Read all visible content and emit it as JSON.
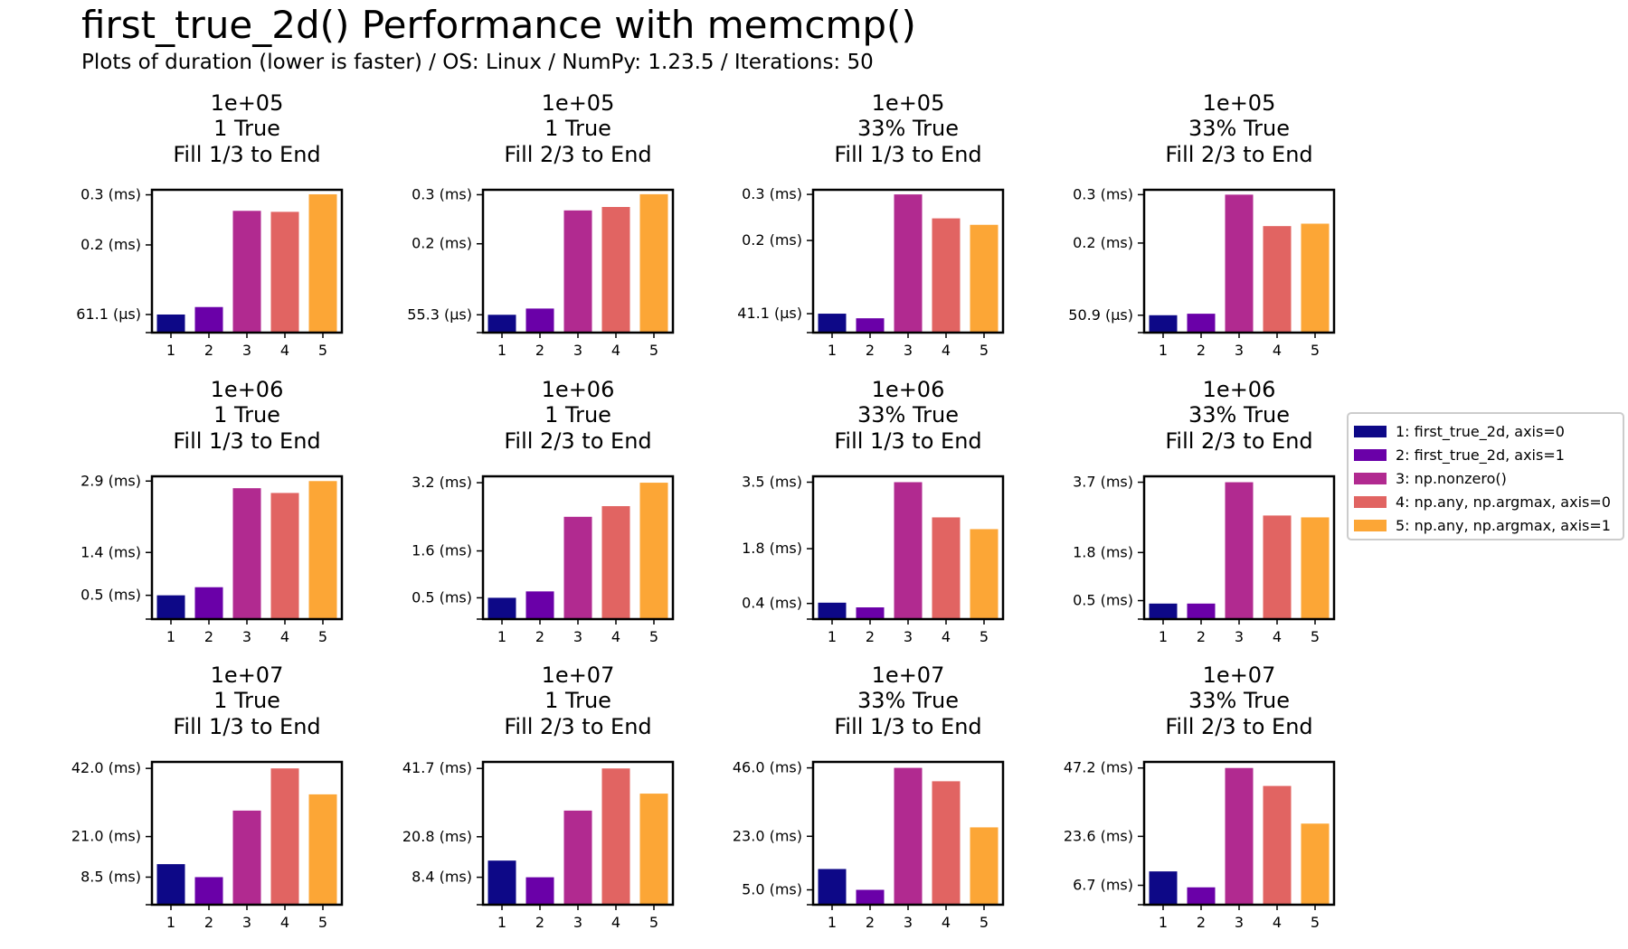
{
  "header": {
    "title": "first_true_2d() Performance with memcmp()",
    "subtitle": "Plots of duration (lower is faster) / OS: Linux / NumPy: 1.23.5 / Iterations: 50"
  },
  "legend": {
    "placement": "center-right",
    "entries": [
      {
        "label": "1: first_true_2d, axis=0",
        "color": "#0d0887"
      },
      {
        "label": "2: first_true_2d, axis=1",
        "color": "#6a00a8"
      },
      {
        "label": "3: np.nonzero()",
        "color": "#b12a90"
      },
      {
        "label": "4: np.any, np.argmax, axis=0",
        "color": "#e16462"
      },
      {
        "label": "5: np.any, np.argmax, axis=1",
        "color": "#fca636"
      }
    ]
  },
  "chart_data": [
    {
      "type": "bar",
      "title": [
        "1e+05",
        "1 True",
        "Fill 1/3 to End"
      ],
      "categories": [
        "1",
        "2",
        "3",
        "4",
        "5"
      ],
      "values": [
        0.0611,
        0.076,
        0.268,
        0.266,
        0.301
      ],
      "ylim": [
        0.025,
        0.31
      ],
      "yticks": [
        0.0611,
        0.2,
        0.3
      ],
      "ytick_labels": [
        "61.1 (µs)",
        "0.2 (ms)",
        "0.3 (ms)"
      ]
    },
    {
      "type": "bar",
      "title": [
        "1e+05",
        "1 True",
        "Fill 2/3 to End"
      ],
      "categories": [
        "1",
        "2",
        "3",
        "4",
        "5"
      ],
      "values": [
        0.0553,
        0.068,
        0.268,
        0.275,
        0.301
      ],
      "ylim": [
        0.019,
        0.31
      ],
      "yticks": [
        0.0553,
        0.2,
        0.3
      ],
      "ytick_labels": [
        "55.3 (µs)",
        "0.2 (ms)",
        "0.3 (ms)"
      ]
    },
    {
      "type": "bar",
      "title": [
        "1e+05",
        "33% True",
        "Fill 1/3 to End"
      ],
      "categories": [
        "1",
        "2",
        "3",
        "4",
        "5"
      ],
      "values": [
        0.0411,
        0.0311,
        0.3,
        0.248,
        0.234
      ],
      "ylim": [
        0.0,
        0.31
      ],
      "yticks": [
        0.0411,
        0.2,
        0.3
      ],
      "ytick_labels": [
        "41.1 (µs)",
        "0.2 (ms)",
        "0.3 (ms)"
      ]
    },
    {
      "type": "bar",
      "title": [
        "1e+05",
        "33% True",
        "Fill 2/3 to End"
      ],
      "categories": [
        "1",
        "2",
        "3",
        "4",
        "5"
      ],
      "values": [
        0.0509,
        0.054,
        0.3,
        0.235,
        0.24
      ],
      "ylim": [
        0.015,
        0.31
      ],
      "yticks": [
        0.0509,
        0.2,
        0.3
      ],
      "ytick_labels": [
        "50.9 (µs)",
        "0.2 (ms)",
        "0.3 (ms)"
      ]
    },
    {
      "type": "bar",
      "title": [
        "1e+06",
        "1 True",
        "Fill 1/3 to End"
      ],
      "categories": [
        "1",
        "2",
        "3",
        "4",
        "5"
      ],
      "values": [
        0.5,
        0.67,
        2.75,
        2.65,
        2.9
      ],
      "ylim": [
        0.0,
        3.0
      ],
      "yticks": [
        0.5,
        1.4,
        2.9
      ],
      "ytick_labels": [
        "0.5 (ms)",
        "1.4 (ms)",
        "2.9 (ms)"
      ]
    },
    {
      "type": "bar",
      "title": [
        "1e+06",
        "1 True",
        "Fill 2/3 to End"
      ],
      "categories": [
        "1",
        "2",
        "3",
        "4",
        "5"
      ],
      "values": [
        0.5,
        0.65,
        2.4,
        2.65,
        3.2
      ],
      "ylim": [
        0.0,
        3.35
      ],
      "yticks": [
        0.5,
        1.6,
        3.2
      ],
      "ytick_labels": [
        "0.5 (ms)",
        "1.6 (ms)",
        "3.2 (ms)"
      ]
    },
    {
      "type": "bar",
      "title": [
        "1e+06",
        "33% True",
        "Fill 1/3 to End"
      ],
      "categories": [
        "1",
        "2",
        "3",
        "4",
        "5"
      ],
      "values": [
        0.42,
        0.3,
        3.5,
        2.6,
        2.3
      ],
      "ylim": [
        0.0,
        3.65
      ],
      "yticks": [
        0.4,
        1.8,
        3.5
      ],
      "ytick_labels": [
        "0.4 (ms)",
        "1.8 (ms)",
        "3.5 (ms)"
      ]
    },
    {
      "type": "bar",
      "title": [
        "1e+06",
        "33% True",
        "Fill 2/3 to End"
      ],
      "categories": [
        "1",
        "2",
        "3",
        "4",
        "5"
      ],
      "values": [
        0.42,
        0.42,
        3.7,
        2.8,
        2.75
      ],
      "ylim": [
        0.0,
        3.86
      ],
      "yticks": [
        0.5,
        1.8,
        3.7
      ],
      "ytick_labels": [
        "0.5 (ms)",
        "1.8 (ms)",
        "3.7 (ms)"
      ]
    },
    {
      "type": "bar",
      "title": [
        "1e+07",
        "1 True",
        "Fill 1/3 to End"
      ],
      "categories": [
        "1",
        "2",
        "3",
        "4",
        "5"
      ],
      "values": [
        12.5,
        8.5,
        29.0,
        42.0,
        34.0
      ],
      "ylim": [
        0.0,
        44.0
      ],
      "yticks": [
        8.5,
        21.0,
        42.0
      ],
      "ytick_labels": [
        "8.5 (ms)",
        "21.0 (ms)",
        "42.0 (ms)"
      ]
    },
    {
      "type": "bar",
      "title": [
        "1e+07",
        "1 True",
        "Fill 2/3 to End"
      ],
      "categories": [
        "1",
        "2",
        "3",
        "4",
        "5"
      ],
      "values": [
        13.5,
        8.4,
        28.8,
        41.7,
        34.0
      ],
      "ylim": [
        0.0,
        43.7
      ],
      "yticks": [
        8.4,
        20.8,
        41.7
      ],
      "ytick_labels": [
        "8.4 (ms)",
        "20.8 (ms)",
        "41.7 (ms)"
      ]
    },
    {
      "type": "bar",
      "title": [
        "1e+07",
        "33% True",
        "Fill 1/3 to End"
      ],
      "categories": [
        "1",
        "2",
        "3",
        "4",
        "5"
      ],
      "values": [
        12.0,
        5.0,
        46.0,
        41.5,
        26.0
      ],
      "ylim": [
        0.0,
        48.0
      ],
      "yticks": [
        5.0,
        23.0,
        46.0
      ],
      "ytick_labels": [
        "5.0 (ms)",
        "23.0 (ms)",
        "46.0 (ms)"
      ]
    },
    {
      "type": "bar",
      "title": [
        "1e+07",
        "33% True",
        "Fill 2/3 to End"
      ],
      "categories": [
        "1",
        "2",
        "3",
        "4",
        "5"
      ],
      "values": [
        11.5,
        6.0,
        47.2,
        41.0,
        28.0
      ],
      "ylim": [
        0.0,
        49.3
      ],
      "yticks": [
        6.7,
        23.6,
        47.2
      ],
      "ytick_labels": [
        "6.7 (ms)",
        "23.6 (ms)",
        "47.2 (ms)"
      ]
    }
  ]
}
